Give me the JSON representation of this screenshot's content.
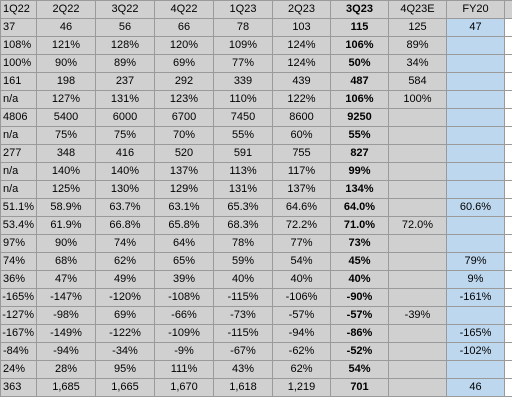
{
  "headers": [
    "1Q22",
    "2Q22",
    "3Q22",
    "4Q22",
    "1Q23",
    "2Q23",
    "3Q23",
    "4Q23E",
    "FY20"
  ],
  "rows": [
    [
      "37",
      "46",
      "56",
      "66",
      "78",
      "103",
      "115",
      "125",
      "47"
    ],
    [
      "108%",
      "121%",
      "128%",
      "120%",
      "109%",
      "124%",
      "106%",
      "89%",
      ""
    ],
    [
      "100%",
      "90%",
      "89%",
      "69%",
      "77%",
      "124%",
      "50%",
      "34%",
      ""
    ],
    [
      "161",
      "198",
      "237",
      "292",
      "339",
      "439",
      "487",
      "584",
      ""
    ],
    [
      "n/a",
      "127%",
      "131%",
      "123%",
      "110%",
      "122%",
      "106%",
      "100%",
      ""
    ],
    [
      "4806",
      "5400",
      "6000",
      "6700",
      "7450",
      "8600",
      "9250",
      "",
      ""
    ],
    [
      "n/a",
      "75%",
      "75%",
      "70%",
      "55%",
      "60%",
      "55%",
      "",
      ""
    ],
    [
      "277",
      "348",
      "416",
      "520",
      "591",
      "755",
      "827",
      "",
      ""
    ],
    [
      "n/a",
      "140%",
      "140%",
      "137%",
      "113%",
      "117%",
      "99%",
      "",
      ""
    ],
    [
      "n/a",
      "125%",
      "130%",
      "129%",
      "131%",
      "137%",
      "134%",
      "",
      ""
    ],
    [
      "51.1%",
      "58.9%",
      "63.7%",
      "63.1%",
      "65.3%",
      "64.6%",
      "64.0%",
      "",
      "60.6%"
    ],
    [
      "53.4%",
      "61.9%",
      "66.8%",
      "65.8%",
      "68.3%",
      "72.2%",
      "71.0%",
      "72.0%",
      ""
    ],
    [
      "97%",
      "90%",
      "74%",
      "64%",
      "78%",
      "77%",
      "73%",
      "",
      ""
    ],
    [
      "74%",
      "68%",
      "62%",
      "65%",
      "59%",
      "54%",
      "45%",
      "",
      "79%"
    ],
    [
      "36%",
      "47%",
      "49%",
      "39%",
      "40%",
      "40%",
      "40%",
      "",
      "9%"
    ],
    [
      "-165%",
      "-147%",
      "-120%",
      "-108%",
      "-115%",
      "-106%",
      "-90%",
      "",
      "-161%"
    ],
    [
      "-127%",
      "-98%",
      "69%",
      "-66%",
      "-73%",
      "-57%",
      "-57%",
      "-39%",
      ""
    ],
    [
      "-167%",
      "-149%",
      "-122%",
      "-109%",
      "-115%",
      "-94%",
      "-86%",
      "",
      "-165%"
    ],
    [
      "-84%",
      "-94%",
      "-34%",
      "-9%",
      "-67%",
      "-62%",
      "-52%",
      "",
      "-102%"
    ],
    [
      "24%",
      "28%",
      "95%",
      "111%",
      "43%",
      "62%",
      "54%",
      "",
      ""
    ],
    [
      "363",
      "1,685",
      "1,665",
      "1,670",
      "1,618",
      "1,219",
      "701",
      "",
      "46"
    ]
  ]
}
